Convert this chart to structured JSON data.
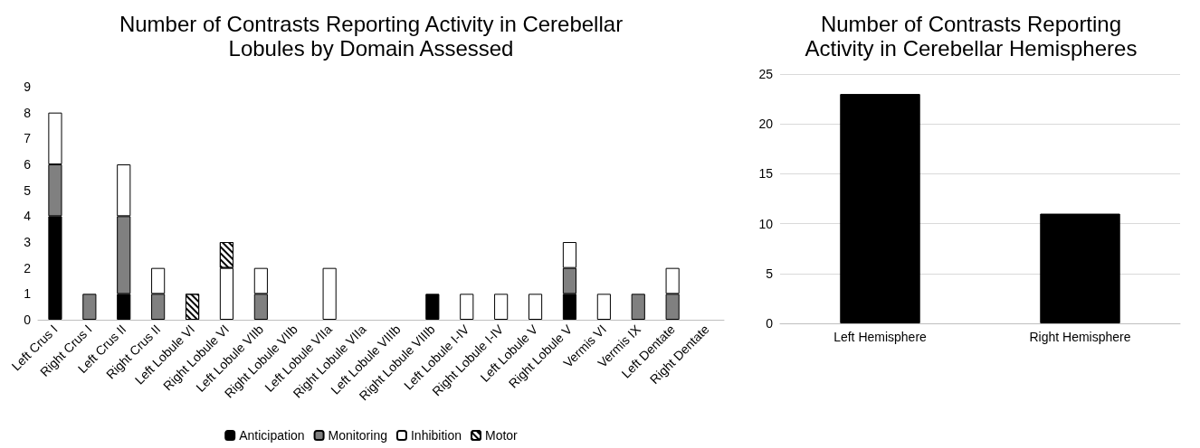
{
  "chart_data": [
    {
      "type": "bar",
      "title": "Number of Contrasts Reporting Activity in Cerebellar\nLobules by Domain Assessed",
      "stacked": true,
      "legend": "bottom",
      "grid": false,
      "categories": [
        "Left Crus I",
        "Right Crus I",
        "Left Crus II",
        "Right Crus II",
        "Left Lobule VI",
        "Right Lobule VI",
        "Left Lobule VIIb",
        "Right Lobule VIIb",
        "Left Lobule VIIa",
        "Right Lobule VIIa",
        "Left Lobule VIIIb",
        "Right Lobule VIIIb",
        "Left Lobule I-IV",
        "Right Lobule I-IV",
        "Left Lobule V",
        "Right Lobule V",
        "Vermis VI",
        "Vermis IX",
        "Left Dentate",
        "Right Dentate"
      ],
      "series": [
        {
          "name": "Anticipation",
          "color": "#000000",
          "values": [
            4,
            0,
            1,
            0,
            0,
            0,
            0,
            0,
            0,
            0,
            0,
            1,
            0,
            0,
            0,
            1,
            0,
            0,
            0,
            0
          ]
        },
        {
          "name": "Monitoring",
          "color": "#808080",
          "values": [
            2,
            1,
            3,
            1,
            0,
            0,
            1,
            0,
            0,
            0,
            0,
            0,
            0,
            0,
            0,
            1,
            0,
            1,
            1,
            0
          ]
        },
        {
          "name": "Inhibition",
          "color": "#ffffff",
          "values": [
            2,
            0,
            2,
            1,
            0,
            2,
            1,
            0,
            2,
            0,
            0,
            0,
            1,
            1,
            1,
            1,
            1,
            0,
            1,
            0
          ]
        },
        {
          "name": "Motor",
          "color": "#ffffff",
          "values": [
            0,
            0,
            0,
            0,
            1,
            1,
            0,
            0,
            0,
            0,
            0,
            0,
            0,
            0,
            0,
            0,
            0,
            0,
            0,
            0
          ]
        }
      ],
      "ylim": [
        0,
        9
      ],
      "yticks": [
        0,
        1,
        2,
        3,
        4,
        5,
        6,
        7,
        8,
        9
      ]
    },
    {
      "type": "bar",
      "title": "Number of Contrasts Reporting\nActivity in Cerebellar Hemispheres",
      "grid": "y",
      "categories": [
        "Left Hemisphere",
        "Right Hemisphere"
      ],
      "series": [
        {
          "color": "#000000",
          "values": [
            23,
            11
          ]
        }
      ],
      "ylim": [
        0,
        25
      ],
      "yticks": [
        0,
        5,
        10,
        15,
        20,
        25
      ]
    }
  ]
}
